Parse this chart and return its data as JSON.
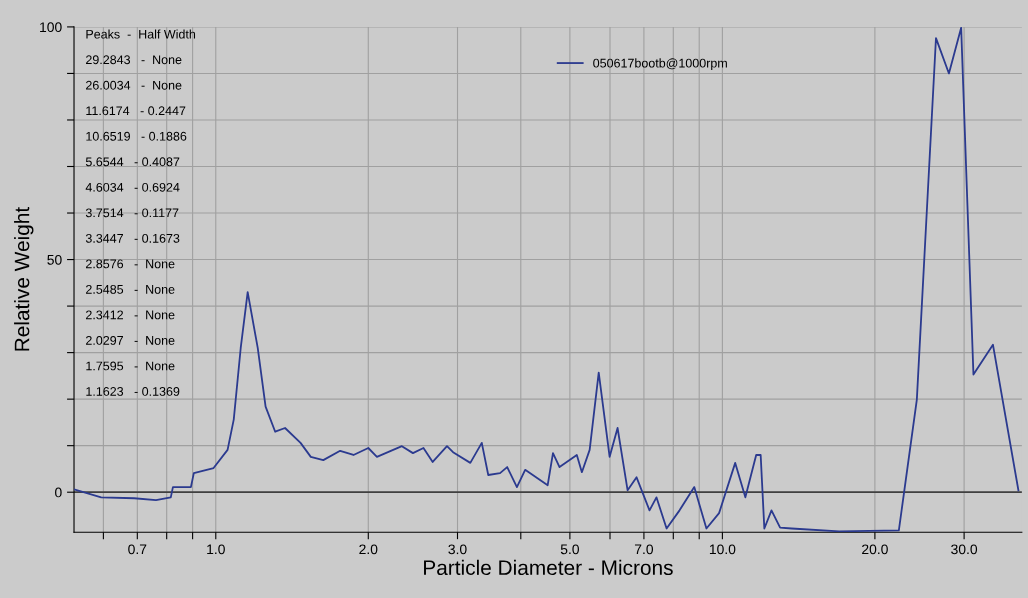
{
  "chart_data": {
    "type": "line",
    "xlabel": "Particle Diameter - Microns",
    "ylabel": "Relative Weight",
    "log": "x",
    "grid": true,
    "legend": "top",
    "marker": "none",
    "line_style": "solid",
    "xlim": [
      0.525,
      39
    ],
    "xticks": [
      {
        "value": 0.6,
        "label": null
      },
      {
        "value": 0.7,
        "label": "0.7"
      },
      {
        "value": 0.8,
        "label": null
      },
      {
        "value": 0.9,
        "label": null
      },
      {
        "value": 1.0,
        "label": "1.0"
      },
      {
        "value": 2.0,
        "label": "2.0"
      },
      {
        "value": 3.0,
        "label": "3.0"
      },
      {
        "value": 4.0,
        "label": null
      },
      {
        "value": 5.0,
        "label": "5.0"
      },
      {
        "value": 6.0,
        "label": null
      },
      {
        "value": 7.0,
        "label": "7.0"
      },
      {
        "value": 8.0,
        "label": null
      },
      {
        "value": 9.0,
        "label": null
      },
      {
        "value": 10.0,
        "label": "10.0"
      },
      {
        "value": 20.0,
        "label": "20.0"
      },
      {
        "value": 30.0,
        "label": "30.0"
      }
    ],
    "ylim": [
      -8.6,
      100
    ],
    "yticks": [
      0,
      {
        "value": 10,
        "label": null
      },
      {
        "value": 20,
        "label": null
      },
      {
        "value": 30,
        "label": null
      },
      {
        "value": 40,
        "label": null
      },
      50,
      {
        "value": 60,
        "label": null
      },
      {
        "value": 70,
        "label": null
      },
      {
        "value": 80,
        "label": null
      },
      {
        "value": 90,
        "label": null
      },
      100
    ],
    "ref_lines": [
      {
        "axis": "y",
        "value": 0,
        "label": null,
        "color": "#404040"
      }
    ],
    "annotations": [
      "Peaks  -  Half Width",
      "29.2843   -  None",
      "26.0034   -  None",
      "11.6174   - 0.2447",
      "10.6519   - 0.1886",
      "5.6544   - 0.4087",
      "4.6034   - 0.6924",
      "3.7514   - 0.1177",
      "3.3447   - 0.1673",
      "2.8576   -  None",
      "2.5485   -  None",
      "2.3412   -  None",
      "2.0297   -  None",
      "1.7595   -  None",
      "1.1623   - 0.1369"
    ],
    "series": [
      {
        "name": "050617bootb@1000rpm",
        "color": "#2b3a8f",
        "x": [
          0.525,
          0.594,
          0.69,
          0.762,
          0.815,
          0.823,
          0.893,
          0.905,
          0.99,
          1.055,
          1.085,
          1.12,
          1.156,
          1.21,
          1.254,
          1.31,
          1.37,
          1.47,
          1.54,
          1.63,
          1.76,
          1.87,
          2.0,
          2.08,
          2.33,
          2.45,
          2.57,
          2.68,
          2.86,
          2.94,
          3.18,
          3.35,
          3.45,
          3.64,
          3.76,
          3.93,
          4.08,
          4.52,
          4.63,
          4.77,
          5.16,
          5.28,
          5.47,
          5.7,
          5.99,
          6.21,
          6.5,
          6.77,
          7.18,
          7.41,
          7.76,
          8.23,
          8.8,
          9.3,
          9.85,
          10.6,
          11.1,
          11.66,
          11.9,
          12.1,
          12.5,
          13.0,
          13.7,
          17.0,
          22.3,
          24.2,
          26.4,
          28.0,
          29.6,
          31.3,
          34.2,
          38.4
        ],
        "values": [
          0.6,
          -1.1,
          -1.3,
          -1.7,
          -1.1,
          1.1,
          1.1,
          4.1,
          5.2,
          9.1,
          15.6,
          31,
          43,
          31,
          18.4,
          13,
          13.8,
          10.6,
          7.6,
          6.9,
          8.9,
          8.0,
          9.5,
          7.6,
          9.9,
          8.4,
          9.5,
          6.5,
          9.9,
          8.6,
          6.3,
          10.6,
          3.7,
          4.1,
          5.4,
          1.1,
          4.8,
          1.5,
          8.4,
          5.4,
          8.0,
          4.3,
          9.1,
          25.7,
          7.6,
          13.8,
          0.4,
          3.2,
          -3.9,
          -1.1,
          -7.8,
          -3.9,
          1.1,
          -7.8,
          -4.5,
          6.3,
          -1.1,
          8.0,
          8.0,
          -7.8,
          -3.9,
          -7.6,
          -7.8,
          -8.4,
          -8.2,
          19.9,
          97.6,
          90,
          99.8,
          25.3,
          31.7,
          0.4
        ]
      }
    ]
  }
}
